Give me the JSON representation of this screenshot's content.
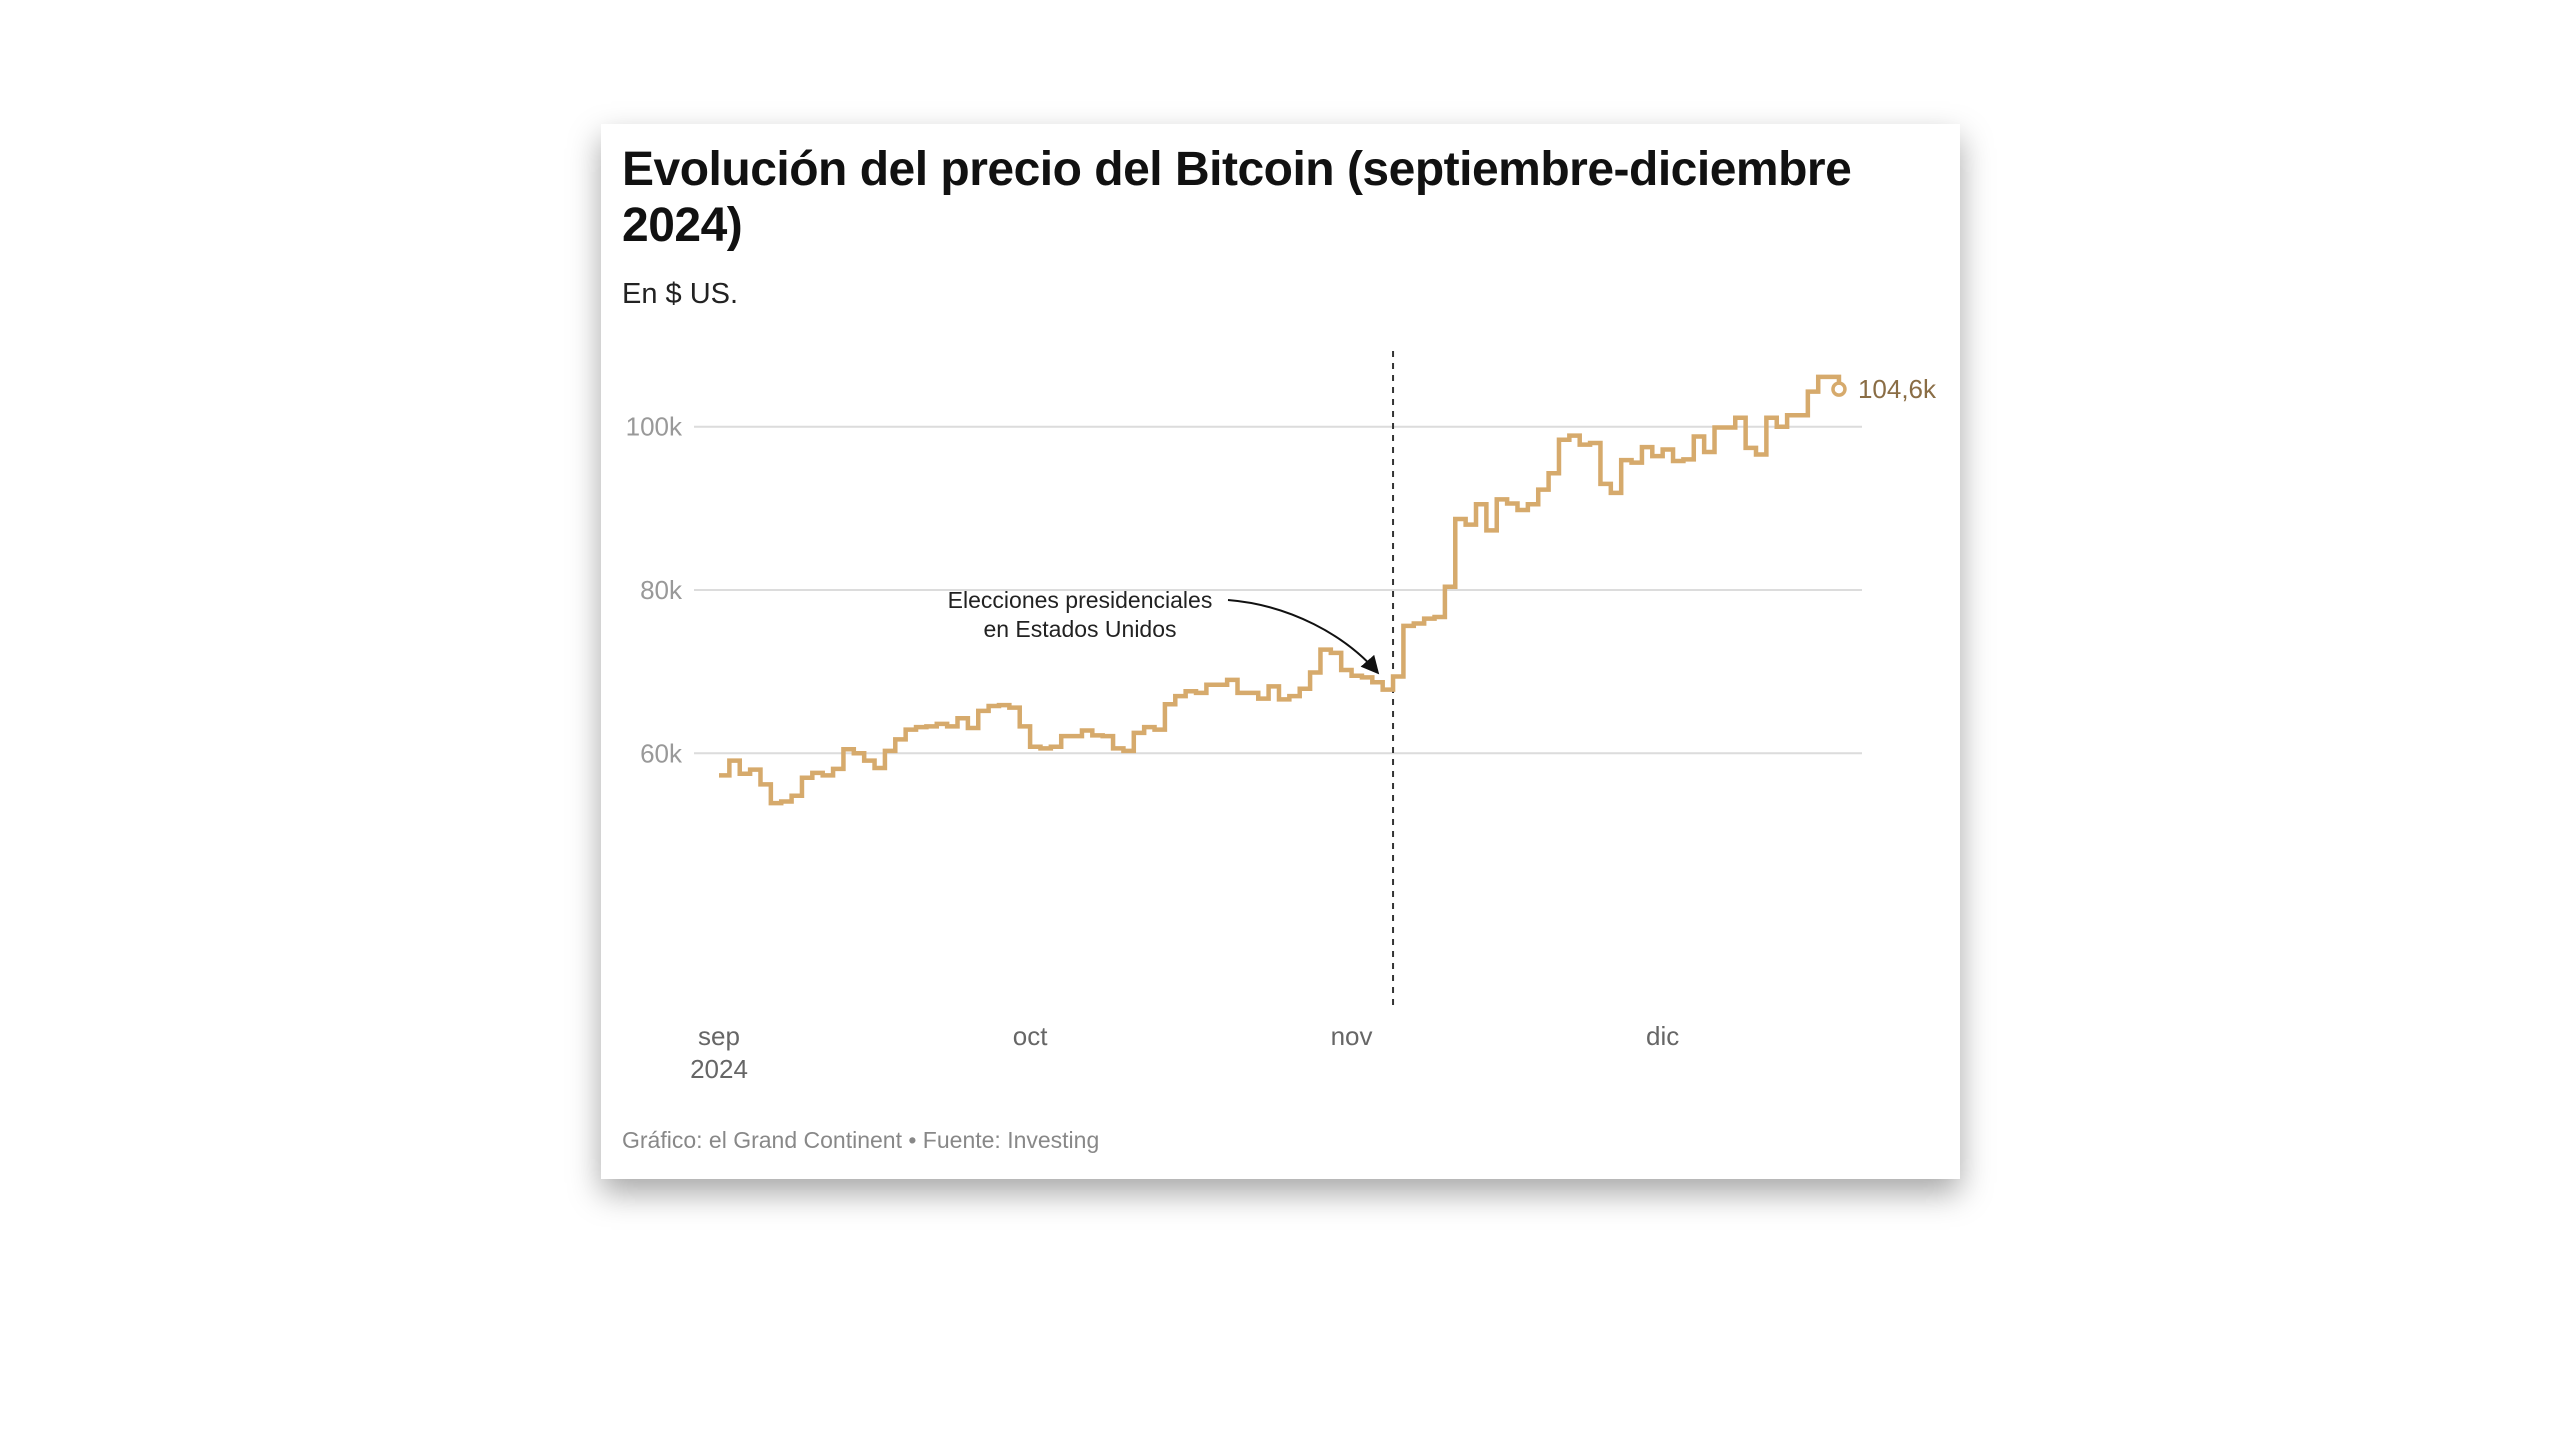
{
  "title": "Evolución del precio del Bitcoin (septiembre-diciembre 2024)",
  "subtitle": "En $ US.",
  "footer": "Gráfico: el Grand Continent • Fuente: Investing",
  "chart_data": {
    "type": "line",
    "interpolation": "step-after",
    "title": "Evolución del precio del Bitcoin (septiembre-diciembre 2024)",
    "subtitle": "En $ US.",
    "xlabel": "",
    "ylabel": "",
    "x_start": "2024-09-01",
    "x_end": "2024-12-18",
    "ylim": [
      50000,
      110000
    ],
    "yticks": [
      {
        "value": 60000,
        "label": "60k"
      },
      {
        "value": 80000,
        "label": "80k"
      },
      {
        "value": 100000,
        "label": "100k"
      }
    ],
    "xticks": [
      {
        "day": 0,
        "label": "sep",
        "sublabel": "2024"
      },
      {
        "day": 30,
        "label": "oct"
      },
      {
        "day": 61,
        "label": "nov"
      },
      {
        "day": 91,
        "label": "dic"
      }
    ],
    "grid": true,
    "line_color": "#d6aa6c",
    "series": [
      {
        "name": "Bitcoin (USD)",
        "values": [
          57300,
          59100,
          57500,
          58000,
          56200,
          53900,
          54100,
          54800,
          57000,
          57600,
          57300,
          58100,
          60500,
          60000,
          59100,
          58200,
          60300,
          61700,
          62900,
          63200,
          63300,
          63600,
          63300,
          64300,
          63100,
          65200,
          65800,
          65900,
          65600,
          63300,
          60800,
          60600,
          60800,
          62100,
          62100,
          62800,
          62200,
          62100,
          60600,
          60300,
          62500,
          63200,
          62900,
          66000,
          67000,
          67600,
          67400,
          68400,
          68400,
          69000,
          67400,
          67400,
          66700,
          68200,
          66600,
          67000,
          67900,
          69900,
          72700,
          72300,
          70200,
          69500,
          69300,
          68700,
          67800,
          69400,
          75600,
          75900,
          76500,
          76700,
          80400,
          88700,
          88000,
          90500,
          87300,
          91100,
          90600,
          89800,
          90500,
          92300,
          94300,
          98400,
          98900,
          97800,
          98000,
          93000,
          91900,
          95900,
          95600,
          97500,
          96400,
          97200,
          95800,
          96000,
          98800,
          96900,
          99900,
          99900,
          101100,
          97400,
          96600,
          101100,
          100000,
          101400,
          101400,
          104300,
          106100,
          106100,
          104600
        ]
      }
    ],
    "end_label": "104,6k",
    "annotations": [
      {
        "day": 65,
        "type": "vertical-dashed-line",
        "text_lines": [
          "Elecciones presidenciales",
          "en Estados Unidos"
        ]
      }
    ]
  }
}
